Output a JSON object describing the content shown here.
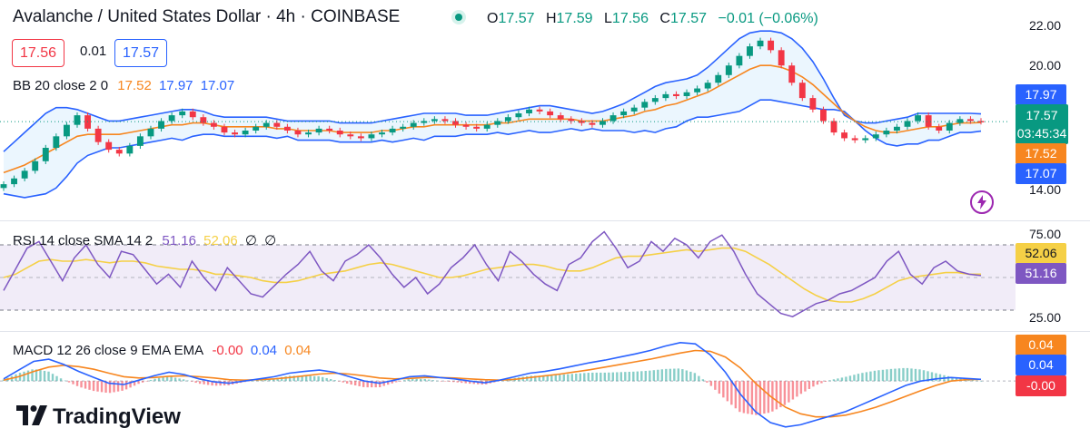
{
  "header": {
    "title": "Avalanche / United States Dollar · 4h · COINBASE",
    "ohlc": [
      {
        "k": "O",
        "v": "17.57"
      },
      {
        "k": "H",
        "v": "17.59"
      },
      {
        "k": "L",
        "v": "17.56"
      },
      {
        "k": "C",
        "v": "17.57"
      },
      {
        "k": "",
        "v": "−0.01 (−0.06%)"
      }
    ],
    "sell_price": "17.56",
    "spread": "0.01",
    "buy_price": "17.57"
  },
  "bb": {
    "label": "BB 20 close 2 0",
    "basis": "17.52",
    "upper": "17.97",
    "lower": "17.07",
    "colors": {
      "basis": "#f7861f",
      "band": "#2962ff",
      "fill": "#e3f2fd"
    }
  },
  "rsi": {
    "label": "RSI 14 close SMA 14 2",
    "rsi_value": "51.16",
    "sma_value": "52.06",
    "extra1": "∅",
    "extra2": "∅",
    "colors": {
      "rsi": "#7e57c2",
      "sma": "#f5d046",
      "band": "#ede7f6"
    }
  },
  "macd": {
    "label": "MACD 12 26 close 9 EMA EMA",
    "hist_value": "-0.00",
    "macd_value": "0.04",
    "signal_value": "0.04",
    "colors": {
      "macd": "#2962ff",
      "signal": "#f7861f",
      "hist_up": "#26a69a",
      "hist_down": "#f23645"
    }
  },
  "axes": {
    "price_ticks": [
      "22.00",
      "20.00",
      "14.00"
    ],
    "rsi_ticks": [
      "75.00",
      "25.00"
    ],
    "price_tags": {
      "upper": "17.97",
      "last": "17.57",
      "countdown": "03:45:34",
      "basis": "17.52",
      "lower": "17.07"
    },
    "rsi_tags": {
      "sma": "52.06",
      "rsi": "51.16"
    },
    "macd_tags": {
      "signal": "0.04",
      "macd": "0.04",
      "hist": "-0.00"
    }
  },
  "branding": {
    "logo_text": "TradingView"
  },
  "chart_data": [
    {
      "type": "candlestick",
      "title": "Avalanche / United States Dollar · 4h · COINBASE",
      "ylim": [
        13.5,
        22.5
      ],
      "close": [
        14.3,
        14.6,
        15.0,
        15.5,
        16.2,
        16.8,
        17.4,
        17.9,
        17.2,
        16.5,
        16.1,
        15.9,
        16.3,
        16.8,
        17.2,
        17.6,
        17.9,
        18.1,
        17.8,
        17.5,
        17.3,
        17.0,
        16.9,
        17.1,
        17.3,
        17.5,
        17.3,
        17.1,
        16.9,
        17.0,
        17.2,
        17.1,
        16.9,
        16.8,
        16.7,
        16.9,
        17.0,
        17.2,
        17.3,
        17.5,
        17.6,
        17.7,
        17.6,
        17.4,
        17.3,
        17.2,
        17.4,
        17.6,
        17.8,
        18.0,
        18.2,
        18.1,
        17.9,
        17.7,
        17.6,
        17.5,
        17.4,
        17.6,
        17.9,
        18.1,
        18.3,
        18.6,
        18.8,
        19.0,
        18.9,
        19.1,
        19.3,
        19.6,
        20.0,
        20.5,
        21.0,
        21.5,
        21.8,
        21.3,
        20.5,
        19.6,
        18.8,
        18.2,
        17.6,
        17.0,
        16.7,
        16.6,
        16.7,
        16.9,
        17.1,
        17.3,
        17.6,
        17.9,
        17.3,
        17.1,
        17.5,
        17.7,
        17.6,
        17.57
      ],
      "bb_upper": [
        16.0,
        16.5,
        17.0,
        17.5,
        18.0,
        18.3,
        18.3,
        18.2,
        18.0,
        17.8,
        17.6,
        17.6,
        17.7,
        17.8,
        17.9,
        18.0,
        18.1,
        18.2,
        18.2,
        18.1,
        17.9,
        17.8,
        17.8,
        17.8,
        17.8,
        17.8,
        17.7,
        17.6,
        17.6,
        17.6,
        17.6,
        17.6,
        17.5,
        17.5,
        17.5,
        17.5,
        17.6,
        17.7,
        17.8,
        17.9,
        18.0,
        18.0,
        18.0,
        18.0,
        17.9,
        17.9,
        17.9,
        18.0,
        18.1,
        18.2,
        18.3,
        18.4,
        18.4,
        18.3,
        18.2,
        18.1,
        18.0,
        18.1,
        18.3,
        18.5,
        18.8,
        19.1,
        19.4,
        19.6,
        19.7,
        19.8,
        20.0,
        20.4,
        20.9,
        21.4,
        21.9,
        22.2,
        22.3,
        22.3,
        22.2,
        21.9,
        21.4,
        20.7,
        19.8,
        18.8,
        17.9,
        17.6,
        17.5,
        17.5,
        17.6,
        17.7,
        17.8,
        18.0,
        18.0,
        18.0,
        18.0,
        18.0,
        18.0,
        17.97
      ],
      "bb_basis": [
        14.9,
        15.1,
        15.3,
        15.6,
        15.9,
        16.2,
        16.5,
        16.8,
        16.9,
        16.9,
        16.9,
        16.9,
        17.0,
        17.1,
        17.2,
        17.3,
        17.4,
        17.4,
        17.5,
        17.5,
        17.4,
        17.3,
        17.3,
        17.3,
        17.3,
        17.3,
        17.2,
        17.2,
        17.1,
        17.1,
        17.1,
        17.1,
        17.0,
        17.0,
        17.0,
        17.0,
        17.1,
        17.1,
        17.2,
        17.3,
        17.3,
        17.4,
        17.4,
        17.4,
        17.4,
        17.4,
        17.4,
        17.5,
        17.5,
        17.6,
        17.7,
        17.7,
        17.7,
        17.7,
        17.7,
        17.6,
        17.6,
        17.6,
        17.7,
        17.8,
        17.9,
        18.1,
        18.2,
        18.4,
        18.5,
        18.7,
        18.9,
        19.1,
        19.4,
        19.7,
        20.0,
        20.3,
        20.5,
        20.5,
        20.4,
        20.2,
        19.9,
        19.5,
        19.0,
        18.5,
        18.0,
        17.6,
        17.3,
        17.1,
        17.0,
        17.0,
        17.1,
        17.2,
        17.3,
        17.3,
        17.4,
        17.5,
        17.5,
        17.52
      ],
      "bb_lower": [
        13.8,
        13.7,
        13.6,
        13.7,
        13.8,
        14.1,
        14.7,
        15.4,
        15.8,
        16.0,
        16.2,
        16.2,
        16.3,
        16.4,
        16.5,
        16.6,
        16.7,
        16.6,
        16.8,
        16.9,
        16.9,
        16.8,
        16.8,
        16.8,
        16.8,
        16.8,
        16.7,
        16.8,
        16.6,
        16.6,
        16.6,
        16.6,
        16.5,
        16.5,
        16.5,
        16.5,
        16.6,
        16.5,
        16.6,
        16.7,
        16.6,
        16.8,
        16.8,
        16.8,
        16.9,
        16.9,
        16.9,
        17.0,
        16.9,
        17.0,
        17.1,
        17.0,
        17.0,
        17.1,
        17.2,
        17.1,
        17.2,
        17.1,
        17.1,
        17.1,
        17.0,
        17.1,
        17.0,
        17.2,
        17.3,
        17.6,
        17.8,
        17.8,
        17.9,
        18.0,
        18.1,
        18.4,
        18.7,
        18.7,
        18.6,
        18.5,
        18.4,
        18.3,
        18.2,
        18.2,
        18.1,
        17.6,
        17.1,
        16.7,
        16.4,
        16.3,
        16.4,
        16.4,
        16.6,
        16.6,
        16.8,
        17.0,
        17.0,
        17.07
      ]
    },
    {
      "type": "line",
      "title": "RSI 14 close SMA 14 2",
      "ylim": [
        20,
        80
      ],
      "series": [
        {
          "name": "RSI",
          "values": [
            42,
            55,
            68,
            72,
            60,
            48,
            62,
            70,
            58,
            50,
            66,
            64,
            55,
            46,
            52,
            44,
            60,
            50,
            42,
            56,
            48,
            40,
            38,
            45,
            52,
            58,
            66,
            54,
            48,
            60,
            64,
            70,
            62,
            52,
            44,
            50,
            40,
            46,
            56,
            62,
            70,
            58,
            48,
            66,
            60,
            52,
            46,
            42,
            58,
            62,
            72,
            78,
            68,
            56,
            60,
            72,
            66,
            74,
            70,
            62,
            72,
            76,
            66,
            52,
            40,
            34,
            28,
            26,
            30,
            34,
            36,
            40,
            42,
            46,
            50,
            60,
            66,
            52,
            46,
            56,
            60,
            54,
            52,
            51.16
          ]
        },
        {
          "name": "SMA",
          "values": [
            50,
            52,
            56,
            60,
            61,
            60,
            60,
            61,
            60,
            59,
            60,
            60,
            59,
            57,
            56,
            55,
            55,
            54,
            52,
            52,
            51,
            50,
            48,
            47,
            47,
            48,
            50,
            52,
            53,
            54,
            56,
            58,
            59,
            58,
            56,
            54,
            52,
            50,
            50,
            51,
            53,
            55,
            56,
            57,
            58,
            58,
            57,
            55,
            54,
            54,
            56,
            59,
            62,
            63,
            63,
            64,
            65,
            66,
            67,
            66,
            67,
            68,
            68,
            66,
            62,
            58,
            53,
            48,
            43,
            39,
            36,
            35,
            35,
            37,
            40,
            44,
            48,
            50,
            51,
            52,
            53,
            53,
            52,
            52.06
          ]
        }
      ]
    },
    {
      "type": "line",
      "title": "MACD 12 26 close 9 EMA EMA",
      "ylim": [
        -1.2,
        1.0
      ],
      "series": [
        {
          "name": "MACD",
          "values": [
            0.05,
            0.25,
            0.45,
            0.5,
            0.38,
            0.22,
            0.08,
            -0.05,
            -0.08,
            0.02,
            0.12,
            0.2,
            0.15,
            0.05,
            -0.02,
            -0.05,
            0.0,
            0.05,
            0.1,
            0.18,
            0.22,
            0.25,
            0.2,
            0.1,
            0.0,
            -0.05,
            0.02,
            0.1,
            0.12,
            0.08,
            0.05,
            0.0,
            -0.04,
            0.02,
            0.1,
            0.18,
            0.22,
            0.28,
            0.35,
            0.42,
            0.48,
            0.55,
            0.62,
            0.7,
            0.8,
            0.88,
            0.85,
            0.6,
            0.2,
            -0.3,
            -0.7,
            -0.95,
            -1.05,
            -1.0,
            -0.9,
            -0.8,
            -0.7,
            -0.55,
            -0.4,
            -0.25,
            -0.1,
            0.0,
            0.05,
            0.08,
            0.06,
            0.04
          ]
        },
        {
          "name": "Signal",
          "values": [
            0.02,
            0.1,
            0.22,
            0.32,
            0.36,
            0.33,
            0.27,
            0.18,
            0.1,
            0.07,
            0.08,
            0.11,
            0.12,
            0.1,
            0.07,
            0.03,
            0.02,
            0.03,
            0.05,
            0.08,
            0.12,
            0.16,
            0.18,
            0.16,
            0.12,
            0.07,
            0.05,
            0.06,
            0.08,
            0.08,
            0.07,
            0.05,
            0.03,
            0.02,
            0.04,
            0.08,
            0.12,
            0.16,
            0.21,
            0.26,
            0.32,
            0.38,
            0.44,
            0.5,
            0.57,
            0.64,
            0.7,
            0.68,
            0.55,
            0.3,
            -0.05,
            -0.35,
            -0.6,
            -0.75,
            -0.82,
            -0.82,
            -0.78,
            -0.7,
            -0.6,
            -0.48,
            -0.35,
            -0.22,
            -0.1,
            0.0,
            0.03,
            0.04
          ]
        }
      ]
    }
  ]
}
